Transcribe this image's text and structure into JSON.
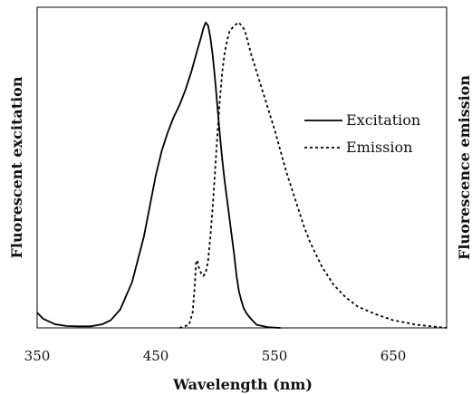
{
  "chart_data": {
    "type": "line",
    "title": "",
    "xlabel": "Wavelength (nm)",
    "ylabel_left": "Fluorescent excitation",
    "ylabel_right": "Fluorescence emission",
    "xlim": [
      350,
      695
    ],
    "ylim": [
      0,
      1.05
    ],
    "x_ticks": [
      350,
      450,
      550,
      650
    ],
    "x_tick_labels": [
      "350",
      "450",
      "550",
      "650"
    ],
    "grid": false,
    "legend_position": "right",
    "series": [
      {
        "name": "Excitation",
        "line_style": "solid",
        "color": "#000000",
        "x": [
          350,
          355,
          365,
          375,
          385,
          395,
          405,
          412,
          420,
          430,
          440,
          445,
          450,
          455,
          460,
          465,
          470,
          475,
          480,
          485,
          488,
          490,
          492,
          494,
          496,
          498,
          500,
          502,
          504,
          506,
          508,
          510,
          512,
          514,
          516,
          518,
          520,
          522,
          524,
          526,
          530,
          535,
          545,
          555
        ],
        "y": [
          0.05,
          0.03,
          0.012,
          0.006,
          0.005,
          0.005,
          0.012,
          0.025,
          0.06,
          0.15,
          0.3,
          0.4,
          0.5,
          0.58,
          0.64,
          0.69,
          0.73,
          0.78,
          0.84,
          0.91,
          0.95,
          0.98,
          1.0,
          0.99,
          0.95,
          0.89,
          0.81,
          0.72,
          0.63,
          0.55,
          0.48,
          0.42,
          0.36,
          0.3,
          0.24,
          0.17,
          0.12,
          0.09,
          0.065,
          0.05,
          0.03,
          0.01,
          0.002,
          0.0
        ]
      },
      {
        "name": "Emission",
        "line_style": "dotted",
        "color": "#000000",
        "x": [
          470,
          478,
          481,
          483,
          484,
          485,
          486,
          488,
          490,
          492,
          494,
          496,
          498,
          500,
          502,
          504,
          506,
          508,
          510,
          512,
          514,
          516,
          518,
          520,
          522,
          524,
          526,
          528,
          530,
          534,
          538,
          542,
          546,
          550,
          555,
          560,
          565,
          570,
          575,
          580,
          590,
          600,
          610,
          620,
          635,
          650,
          670,
          695
        ],
        "y": [
          0.0,
          0.01,
          0.05,
          0.15,
          0.22,
          0.22,
          0.2,
          0.18,
          0.17,
          0.18,
          0.22,
          0.3,
          0.4,
          0.52,
          0.64,
          0.75,
          0.84,
          0.9,
          0.94,
          0.97,
          0.98,
          0.99,
          0.995,
          1.0,
          0.99,
          0.98,
          0.96,
          0.93,
          0.9,
          0.85,
          0.8,
          0.75,
          0.7,
          0.65,
          0.58,
          0.51,
          0.45,
          0.39,
          0.33,
          0.28,
          0.2,
          0.14,
          0.1,
          0.07,
          0.045,
          0.025,
          0.01,
          0.0
        ]
      }
    ]
  }
}
